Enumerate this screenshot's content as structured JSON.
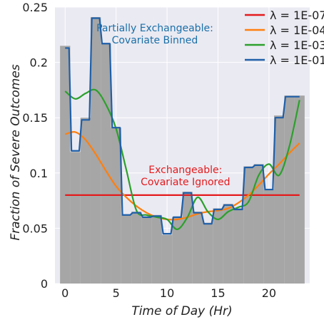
{
  "chart_data": {
    "type": "bar",
    "xlabel": "Time of Day (Hr)",
    "ylabel": "Fraction of Severe Outcomes",
    "xlim": [
      -1,
      24
    ],
    "ylim": [
      0,
      0.25
    ],
    "x_ticks": [
      0,
      5,
      10,
      15,
      20
    ],
    "y_ticks": [
      0,
      0.05,
      0.1,
      0.15,
      0.2,
      0.25
    ],
    "y_tick_labels": [
      "0",
      "0.05",
      "0.1",
      "0.15",
      "0.2",
      "0.25"
    ],
    "grid": true,
    "legend_position": "top-right",
    "bar_color": "#a6a6a6",
    "hours": [
      0,
      1,
      2,
      3,
      4,
      5,
      6,
      7,
      8,
      9,
      10,
      11,
      12,
      13,
      14,
      15,
      16,
      17,
      18,
      19,
      20,
      21,
      22,
      23
    ],
    "bar_values": [
      0.215,
      0.119,
      0.15,
      0.241,
      0.217,
      0.141,
      0.062,
      0.065,
      0.06,
      0.062,
      0.044,
      0.06,
      0.083,
      0.065,
      0.055,
      0.068,
      0.072,
      0.068,
      0.106,
      0.108,
      0.085,
      0.152,
      0.17,
      0.17
    ],
    "series": [
      {
        "name": "λ = 1E-07",
        "color": "#e41a1c",
        "style": "flat",
        "x": [
          0,
          23
        ],
        "y": [
          0.08,
          0.08
        ]
      },
      {
        "name": "λ = 1E-04",
        "color": "#ff7f0e",
        "style": "smooth",
        "x": [
          0,
          1,
          2,
          3,
          4,
          5,
          6,
          7,
          8,
          9,
          10,
          11,
          12,
          13,
          14,
          15,
          16,
          17,
          18,
          19,
          20,
          21,
          22,
          23
        ],
        "y": [
          0.135,
          0.137,
          0.13,
          0.117,
          0.102,
          0.088,
          0.078,
          0.07,
          0.064,
          0.06,
          0.058,
          0.058,
          0.06,
          0.063,
          0.065,
          0.066,
          0.068,
          0.073,
          0.08,
          0.089,
          0.099,
          0.108,
          0.118,
          0.127
        ]
      },
      {
        "name": "λ = 1E-03",
        "color": "#2ca02c",
        "style": "smooth",
        "x": [
          0,
          1,
          2,
          3,
          4,
          5,
          6,
          7,
          8,
          9,
          10,
          11,
          12,
          13,
          14,
          15,
          16,
          17,
          18,
          19,
          20,
          21,
          22,
          23
        ],
        "y": [
          0.174,
          0.167,
          0.172,
          0.175,
          0.162,
          0.14,
          0.103,
          0.066,
          0.062,
          0.06,
          0.058,
          0.049,
          0.06,
          0.078,
          0.065,
          0.058,
          0.065,
          0.069,
          0.074,
          0.098,
          0.108,
          0.098,
          0.124,
          0.166
        ]
      },
      {
        "name": "λ = 1E-01",
        "color": "#1f5fa8",
        "style": "steps",
        "x": [
          0,
          1,
          2,
          3,
          4,
          5,
          6,
          7,
          8,
          9,
          10,
          11,
          12,
          13,
          14,
          15,
          16,
          17,
          18,
          19,
          20,
          21,
          22,
          23
        ],
        "y": [
          0.213,
          0.12,
          0.148,
          0.24,
          0.217,
          0.141,
          0.062,
          0.064,
          0.06,
          0.061,
          0.045,
          0.06,
          0.082,
          0.064,
          0.054,
          0.067,
          0.071,
          0.067,
          0.105,
          0.107,
          0.085,
          0.15,
          0.169,
          0.169
        ]
      }
    ],
    "annotations": [
      {
        "text": [
          "Partially Exchangeable:",
          "Covariate Binned"
        ],
        "color": "#1a6fa8",
        "x": 8.8,
        "y": 0.228
      },
      {
        "text": [
          "Exchangeable:",
          "Covariate Ignored"
        ],
        "color": "#e41a1c",
        "x": 11.8,
        "y": 0.1
      }
    ]
  }
}
